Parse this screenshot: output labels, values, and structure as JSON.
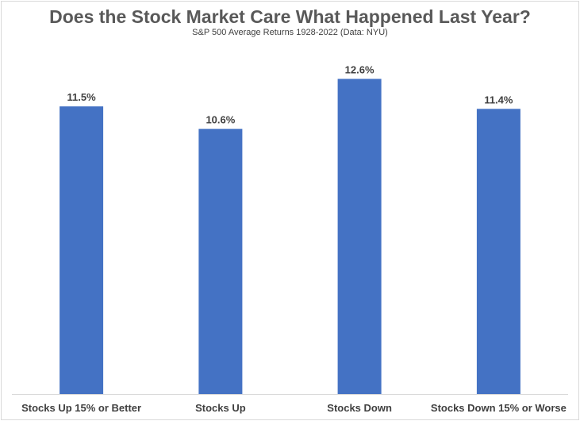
{
  "chart_data": {
    "type": "bar",
    "title": "Does the Stock Market Care What Happened Last Year?",
    "subtitle": "S&P 500 Average Returns 1928-2022 (Data: NYU)",
    "categories": [
      "Stocks Up 15% or Better",
      "Stocks Up",
      "Stocks Down",
      "Stocks Down 15% or Worse"
    ],
    "values": [
      11.5,
      10.6,
      12.6,
      11.4
    ],
    "data_labels": [
      "11.5%",
      "10.6%",
      "12.6%",
      "11.4%"
    ],
    "ylim": [
      0,
      13
    ],
    "xlabel": "",
    "ylabel": "",
    "grid": false,
    "legend": "none",
    "bar_color": "#4472c4"
  }
}
